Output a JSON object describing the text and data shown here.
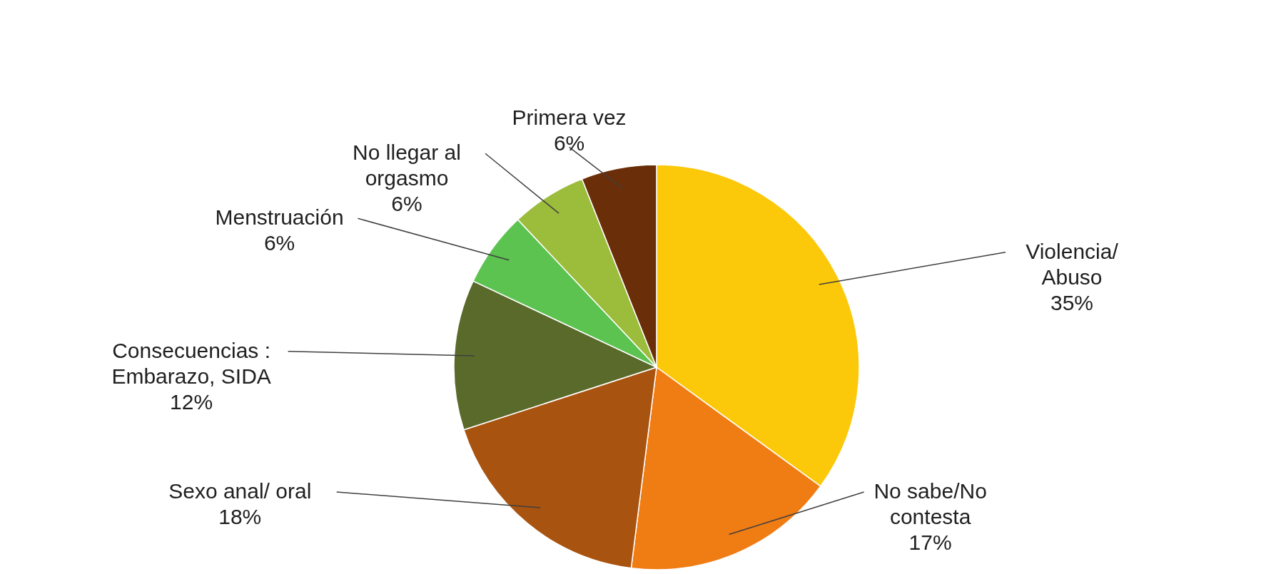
{
  "chart_data": {
    "type": "pie",
    "categories": [
      "Violencia/ Abuso",
      "No sabe/No contesta",
      "Sexo anal/ oral",
      "Consecuencias : Embarazo, SIDA",
      "Menstruación",
      "No llegar al orgasmo",
      "Primera vez"
    ],
    "values": [
      35,
      17,
      18,
      12,
      6,
      6,
      6
    ],
    "value_labels": [
      "35%",
      "17%",
      "18%",
      "12%",
      "6%",
      "6%",
      "6%"
    ],
    "colors": [
      "#fcc80a",
      "#f07c14",
      "#a85310",
      "#5a6a2a",
      "#5cc250",
      "#9cbc3c",
      "#6a2e08"
    ]
  }
}
